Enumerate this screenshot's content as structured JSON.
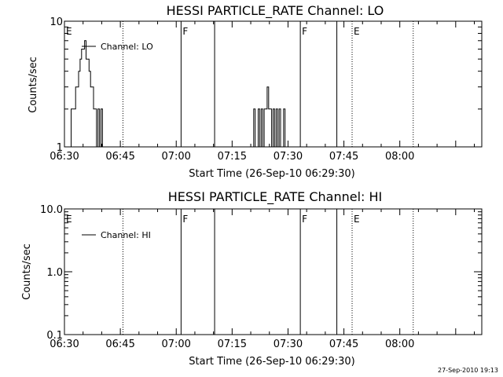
{
  "chart_data": [
    {
      "type": "line",
      "title": "HESSI PARTICLE_RATE Channel: LO",
      "xlabel": "Start Time (26-Sep-10 06:29:30)",
      "ylabel": "Counts/sec",
      "x_unit": "minutes after 06:30",
      "xlim": [
        0,
        112
      ],
      "ylim": [
        1,
        10
      ],
      "yscale": "log",
      "x_ticks": [
        "06:30",
        "06:45",
        "07:00",
        "07:15",
        "07:30",
        "07:45",
        "08:00"
      ],
      "y_ticks": [
        "1",
        "10"
      ],
      "legend": [
        "Channel: LO"
      ],
      "legend_position": "top-left",
      "event_lines": [
        {
          "x": 15.7,
          "style": "dotted",
          "label": ""
        },
        {
          "x": 31.3,
          "style": "solid",
          "label": "F"
        },
        {
          "x": 40.3,
          "style": "solid",
          "label": ""
        },
        {
          "x": 63.3,
          "style": "solid",
          "label": "F"
        },
        {
          "x": 73.1,
          "style": "solid",
          "label": ""
        },
        {
          "x": 77.2,
          "style": "dotted",
          "label": "E"
        },
        {
          "x": 93.6,
          "style": "dotted",
          "label": ""
        },
        {
          "x": 0.0,
          "style": "none",
          "label": "E"
        }
      ],
      "series": [
        {
          "name": "Channel: LO",
          "segments": [
            {
              "x": [
                1.6,
                2.0,
                2.4,
                2.8,
                3.2,
                3.6,
                4.0,
                4.4,
                4.8,
                5.2,
                5.6,
                6.0,
                6.4,
                6.8,
                7.2,
                7.6,
                8.0,
                8.4,
                8.8,
                9.2,
                9.6,
                10.0,
                10.4
              ],
              "y": [
                1,
                2,
                2,
                2,
                3,
                3,
                4,
                5,
                6,
                6,
                7,
                5,
                5,
                4,
                3,
                3,
                2,
                2,
                1,
                2,
                1,
                2,
                1
              ]
            },
            {
              "x": [
                50.6,
                51.0,
                51.4,
                51.8,
                52.2,
                52.6,
                53.0,
                53.4,
                53.8,
                54.2,
                54.6,
                55.0,
                55.4,
                55.8,
                56.2,
                56.6,
                57.0,
                57.4,
                57.8,
                58.2,
                58.6,
                59.0,
                59.4
              ],
              "y": [
                1,
                2,
                1,
                1,
                2,
                1,
                2,
                1,
                2,
                2,
                3,
                2,
                2,
                1,
                2,
                1,
                2,
                1,
                2,
                1,
                1,
                2,
                1
              ]
            }
          ]
        }
      ]
    },
    {
      "type": "line",
      "title": "HESSI PARTICLE_RATE Channel: HI",
      "xlabel": "Start Time (26-Sep-10 06:29:30)",
      "ylabel": "Counts/sec",
      "x_unit": "minutes after 06:30",
      "xlim": [
        0,
        112
      ],
      "ylim": [
        0.1,
        10
      ],
      "yscale": "log",
      "x_ticks": [
        "06:30",
        "06:45",
        "07:00",
        "07:15",
        "07:30",
        "07:45",
        "08:00"
      ],
      "y_ticks": [
        "0.1",
        "1.0",
        "10.0"
      ],
      "legend": [
        "Channel: HI"
      ],
      "legend_position": "top-left",
      "event_lines": [
        {
          "x": 15.7,
          "style": "dotted",
          "label": ""
        },
        {
          "x": 31.3,
          "style": "solid",
          "label": "F"
        },
        {
          "x": 40.3,
          "style": "solid",
          "label": ""
        },
        {
          "x": 63.3,
          "style": "solid",
          "label": "F"
        },
        {
          "x": 73.1,
          "style": "solid",
          "label": ""
        },
        {
          "x": 77.2,
          "style": "dotted",
          "label": "E"
        },
        {
          "x": 93.6,
          "style": "dotted",
          "label": ""
        },
        {
          "x": 0.0,
          "style": "none",
          "label": "E"
        }
      ],
      "series": [
        {
          "name": "Channel: HI",
          "segments": []
        }
      ]
    }
  ],
  "footer": {
    "timestamp": "27-Sep-2010 19:13"
  }
}
